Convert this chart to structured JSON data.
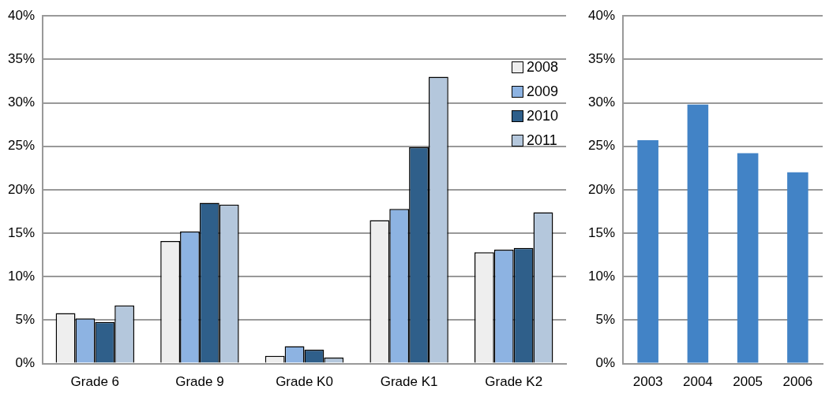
{
  "chart_data": [
    {
      "type": "bar",
      "categories": [
        "Grade 6",
        "Grade 9",
        "Grade K0",
        "Grade K1",
        "Grade K2"
      ],
      "series": [
        {
          "name": "2008",
          "color": "#eeeeee",
          "values": [
            5.8,
            14.1,
            0.9,
            16.5,
            12.8
          ]
        },
        {
          "name": "2009",
          "color": "#8db3e2",
          "values": [
            5.2,
            15.2,
            2.0,
            17.8,
            13.1
          ]
        },
        {
          "name": "2010",
          "color": "#2f5f8a",
          "values": [
            4.8,
            18.5,
            1.6,
            24.9,
            13.3
          ]
        },
        {
          "name": "2011",
          "color": "#b4c7dc",
          "values": [
            6.7,
            18.3,
            0.7,
            33.0,
            17.4
          ]
        }
      ],
      "ylim": [
        0,
        40
      ],
      "yticks": [
        {
          "value": 0,
          "label": "0%"
        },
        {
          "value": 5,
          "label": "5%"
        },
        {
          "value": 10,
          "label": "10%"
        },
        {
          "value": 15,
          "label": "15%"
        },
        {
          "value": 20,
          "label": "20%"
        },
        {
          "value": 25,
          "label": "25%"
        },
        {
          "value": 30,
          "label": "30%"
        },
        {
          "value": 35,
          "label": "35%"
        },
        {
          "value": 40,
          "label": "40%"
        }
      ],
      "grid": "y",
      "legend": "top right"
    },
    {
      "type": "bar",
      "categories": [
        "2003",
        "2004",
        "2005",
        "2006"
      ],
      "series": [
        {
          "color": "#4283c6",
          "values": [
            25.7,
            29.8,
            24.2,
            22.0
          ]
        }
      ],
      "ylim": [
        0,
        40
      ],
      "yticks": [
        {
          "value": 0,
          "label": "0%"
        },
        {
          "value": 5,
          "label": "5%"
        },
        {
          "value": 10,
          "label": "10%"
        },
        {
          "value": 15,
          "label": "15%"
        },
        {
          "value": 20,
          "label": "20%"
        },
        {
          "value": 25,
          "label": "25%"
        },
        {
          "value": 30,
          "label": "30%"
        },
        {
          "value": 35,
          "label": "35%"
        },
        {
          "value": 40,
          "label": "40%"
        }
      ],
      "grid": "y"
    }
  ]
}
